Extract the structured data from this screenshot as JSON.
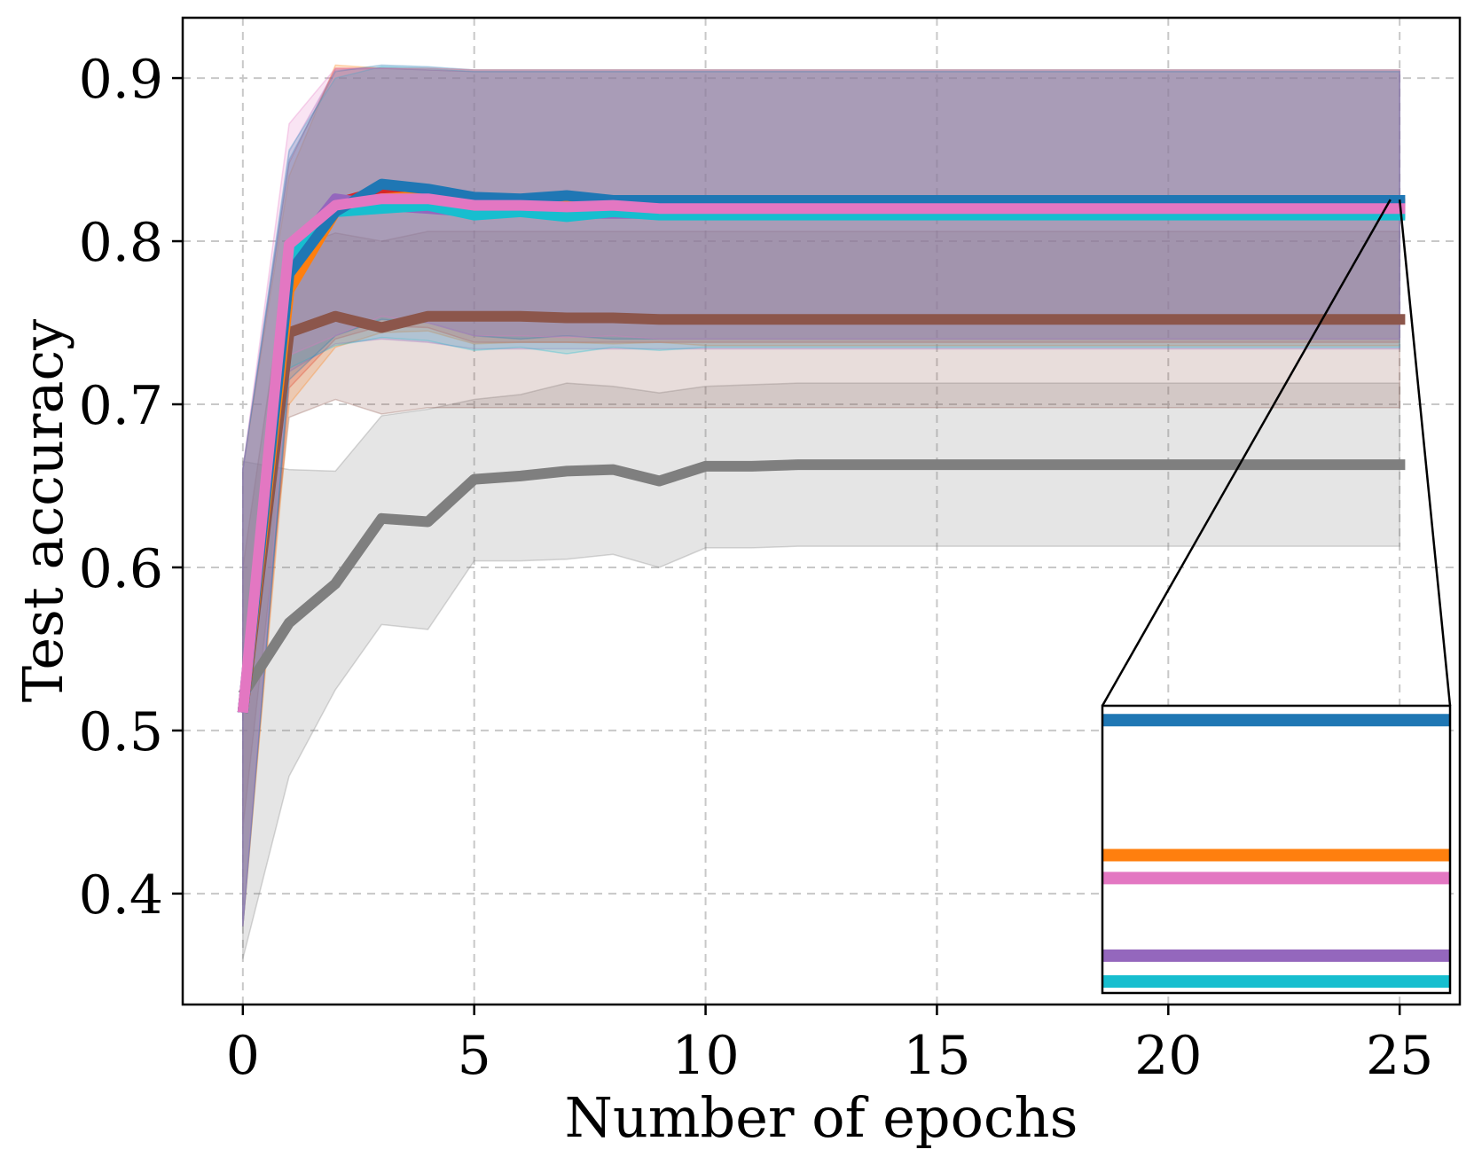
{
  "chart_data": {
    "type": "line",
    "title": "",
    "xlabel": "Number of epochs",
    "ylabel": "Test accuracy",
    "xlim": [
      -1.3,
      26.3
    ],
    "ylim": [
      0.332,
      0.937
    ],
    "xticks": [
      0,
      5,
      10,
      15,
      20,
      25
    ],
    "xtick_labels": [
      "0",
      "5",
      "10",
      "15",
      "20",
      "25"
    ],
    "yticks": [
      0.4,
      0.5,
      0.6,
      0.7,
      0.8,
      0.9
    ],
    "ytick_labels": [
      "0.4",
      "0.5",
      "0.6",
      "0.7",
      "0.8",
      "0.9"
    ],
    "grid": true,
    "x": [
      0,
      1,
      2,
      3,
      4,
      5,
      6,
      7,
      8,
      9,
      10,
      11,
      12,
      13,
      14,
      15,
      16,
      17,
      18,
      19,
      20,
      21,
      22,
      23,
      24,
      25
    ],
    "series": [
      {
        "color": "#7f7f7f",
        "mean": [
          0.522,
          0.566,
          0.59,
          0.63,
          0.628,
          0.654,
          0.656,
          0.659,
          0.66,
          0.653,
          0.662,
          0.662,
          0.663,
          0.663,
          0.663,
          0.663,
          0.663,
          0.663,
          0.663,
          0.663,
          0.663,
          0.663,
          0.663,
          0.663,
          0.663,
          0.663
        ],
        "lower": [
          0.36,
          0.472,
          0.525,
          0.565,
          0.562,
          0.604,
          0.604,
          0.605,
          0.608,
          0.6,
          0.612,
          0.612,
          0.613,
          0.613,
          0.613,
          0.613,
          0.613,
          0.613,
          0.613,
          0.613,
          0.613,
          0.613,
          0.613,
          0.613,
          0.613,
          0.613
        ],
        "upper": [
          0.665,
          0.66,
          0.659,
          0.693,
          0.697,
          0.703,
          0.706,
          0.713,
          0.711,
          0.707,
          0.711,
          0.712,
          0.713,
          0.713,
          0.713,
          0.713,
          0.713,
          0.713,
          0.713,
          0.713,
          0.713,
          0.713,
          0.713,
          0.713,
          0.713,
          0.713
        ]
      },
      {
        "color": "#8c564b",
        "mean": [
          0.511,
          0.744,
          0.754,
          0.747,
          0.754,
          0.754,
          0.754,
          0.753,
          0.753,
          0.752,
          0.752,
          0.752,
          0.752,
          0.752,
          0.752,
          0.752,
          0.752,
          0.752,
          0.752,
          0.752,
          0.752,
          0.752,
          0.752,
          0.752,
          0.752,
          0.752
        ],
        "lower": [
          0.44,
          0.692,
          0.703,
          0.694,
          0.698,
          0.698,
          0.698,
          0.698,
          0.698,
          0.698,
          0.698,
          0.698,
          0.698,
          0.698,
          0.698,
          0.698,
          0.698,
          0.698,
          0.698,
          0.698,
          0.698,
          0.698,
          0.698,
          0.698,
          0.698,
          0.698
        ],
        "upper": [
          0.6,
          0.795,
          0.805,
          0.8,
          0.806,
          0.806,
          0.806,
          0.806,
          0.806,
          0.806,
          0.806,
          0.806,
          0.806,
          0.806,
          0.806,
          0.806,
          0.806,
          0.806,
          0.806,
          0.806,
          0.806,
          0.806,
          0.806,
          0.806,
          0.806,
          0.806
        ]
      },
      {
        "color": "#d62728",
        "mean": [
          0.511,
          0.778,
          0.823,
          0.831,
          0.83,
          0.824,
          0.824,
          0.824,
          0.823,
          0.823,
          0.823,
          0.823,
          0.823,
          0.823,
          0.823,
          0.823,
          0.823,
          0.823,
          0.823,
          0.823,
          0.823,
          0.823,
          0.823,
          0.823,
          0.823,
          0.823
        ],
        "lower": [
          0.38,
          0.71,
          0.74,
          0.748,
          0.747,
          0.738,
          0.738,
          0.738,
          0.738,
          0.738,
          0.738,
          0.738,
          0.738,
          0.738,
          0.738,
          0.738,
          0.738,
          0.738,
          0.738,
          0.738,
          0.738,
          0.738,
          0.738,
          0.738,
          0.738,
          0.738
        ],
        "upper": [
          0.66,
          0.848,
          0.906,
          0.906,
          0.905,
          0.904,
          0.904,
          0.904,
          0.904,
          0.904,
          0.904,
          0.904,
          0.904,
          0.904,
          0.904,
          0.904,
          0.904,
          0.904,
          0.904,
          0.904,
          0.904,
          0.904,
          0.904,
          0.904,
          0.904,
          0.904
        ]
      },
      {
        "color": "#ff7f0e",
        "mean": [
          0.511,
          0.77,
          0.818,
          0.826,
          0.828,
          0.821,
          0.824,
          0.823,
          0.822,
          0.825,
          0.82,
          0.82,
          0.82,
          0.82,
          0.82,
          0.82,
          0.82,
          0.82,
          0.82,
          0.82,
          0.82,
          0.82,
          0.82,
          0.82,
          0.82,
          0.82
        ],
        "lower": [
          0.38,
          0.7,
          0.735,
          0.744,
          0.745,
          0.737,
          0.738,
          0.738,
          0.737,
          0.738,
          0.736,
          0.736,
          0.736,
          0.736,
          0.736,
          0.736,
          0.736,
          0.736,
          0.736,
          0.736,
          0.736,
          0.736,
          0.736,
          0.736,
          0.736,
          0.736
        ],
        "upper": [
          0.66,
          0.84,
          0.908,
          0.906,
          0.906,
          0.905,
          0.905,
          0.905,
          0.905,
          0.905,
          0.905,
          0.905,
          0.905,
          0.905,
          0.905,
          0.905,
          0.905,
          0.905,
          0.905,
          0.905,
          0.905,
          0.905,
          0.905,
          0.905,
          0.905,
          0.905
        ]
      },
      {
        "color": "#9467bd",
        "mean": [
          0.511,
          0.79,
          0.826,
          0.822,
          0.82,
          0.818,
          0.818,
          0.817,
          0.817,
          0.817,
          0.817,
          0.817,
          0.817,
          0.817,
          0.817,
          0.817,
          0.817,
          0.817,
          0.817,
          0.817,
          0.817,
          0.817,
          0.817,
          0.817,
          0.817,
          0.817
        ],
        "lower": [
          0.38,
          0.72,
          0.737,
          0.74,
          0.738,
          0.734,
          0.734,
          0.734,
          0.734,
          0.734,
          0.734,
          0.734,
          0.734,
          0.734,
          0.734,
          0.734,
          0.734,
          0.734,
          0.734,
          0.734,
          0.734,
          0.734,
          0.734,
          0.734,
          0.734,
          0.734
        ],
        "upper": [
          0.66,
          0.855,
          0.905,
          0.906,
          0.905,
          0.904,
          0.904,
          0.904,
          0.904,
          0.904,
          0.904,
          0.904,
          0.904,
          0.904,
          0.904,
          0.904,
          0.904,
          0.904,
          0.904,
          0.904,
          0.904,
          0.904,
          0.904,
          0.904,
          0.904,
          0.904
        ]
      },
      {
        "color": "#17becf",
        "mean": [
          0.511,
          0.79,
          0.818,
          0.82,
          0.822,
          0.816,
          0.818,
          0.815,
          0.818,
          0.816,
          0.816,
          0.816,
          0.816,
          0.816,
          0.816,
          0.816,
          0.816,
          0.816,
          0.816,
          0.816,
          0.816,
          0.816,
          0.816,
          0.816,
          0.816,
          0.816
        ],
        "lower": [
          0.38,
          0.722,
          0.736,
          0.741,
          0.739,
          0.733,
          0.735,
          0.731,
          0.735,
          0.733,
          0.735,
          0.735,
          0.735,
          0.735,
          0.735,
          0.735,
          0.735,
          0.735,
          0.735,
          0.735,
          0.735,
          0.735,
          0.735,
          0.735,
          0.735,
          0.735
        ],
        "upper": [
          0.66,
          0.856,
          0.9,
          0.907,
          0.906,
          0.904,
          0.904,
          0.904,
          0.904,
          0.904,
          0.904,
          0.904,
          0.904,
          0.904,
          0.904,
          0.904,
          0.904,
          0.904,
          0.904,
          0.904,
          0.904,
          0.904,
          0.904,
          0.904,
          0.904,
          0.904
        ]
      },
      {
        "color": "#1f77b4",
        "mean": [
          0.511,
          0.78,
          0.818,
          0.835,
          0.832,
          0.827,
          0.826,
          0.828,
          0.825,
          0.825,
          0.825,
          0.825,
          0.825,
          0.825,
          0.825,
          0.825,
          0.825,
          0.825,
          0.825,
          0.825,
          0.825,
          0.825,
          0.825,
          0.825,
          0.825,
          0.825
        ],
        "lower": [
          0.38,
          0.715,
          0.742,
          0.752,
          0.75,
          0.742,
          0.74,
          0.742,
          0.74,
          0.74,
          0.74,
          0.74,
          0.74,
          0.74,
          0.74,
          0.74,
          0.74,
          0.74,
          0.74,
          0.74,
          0.74,
          0.74,
          0.74,
          0.74,
          0.74,
          0.74
        ],
        "upper": [
          0.66,
          0.85,
          0.904,
          0.908,
          0.907,
          0.905,
          0.905,
          0.905,
          0.905,
          0.905,
          0.905,
          0.905,
          0.905,
          0.905,
          0.905,
          0.905,
          0.905,
          0.905,
          0.905,
          0.905,
          0.905,
          0.905,
          0.905,
          0.905,
          0.905,
          0.905
        ]
      },
      {
        "color": "#e377c2",
        "mean": [
          0.511,
          0.798,
          0.822,
          0.826,
          0.826,
          0.822,
          0.822,
          0.821,
          0.822,
          0.82,
          0.82,
          0.82,
          0.82,
          0.82,
          0.82,
          0.82,
          0.82,
          0.82,
          0.82,
          0.82,
          0.82,
          0.82,
          0.82,
          0.82,
          0.82,
          0.82
        ],
        "lower": [
          0.38,
          0.73,
          0.742,
          0.754,
          0.75,
          0.742,
          0.742,
          0.741,
          0.742,
          0.74,
          0.74,
          0.74,
          0.74,
          0.74,
          0.74,
          0.74,
          0.74,
          0.74,
          0.74,
          0.74,
          0.74,
          0.74,
          0.74,
          0.74,
          0.74,
          0.74
        ],
        "upper": [
          0.66,
          0.872,
          0.906,
          0.906,
          0.906,
          0.905,
          0.905,
          0.905,
          0.905,
          0.905,
          0.905,
          0.905,
          0.905,
          0.905,
          0.905,
          0.905,
          0.905,
          0.905,
          0.905,
          0.905,
          0.905,
          0.905,
          0.905,
          0.905,
          0.905,
          0.905
        ]
      }
    ],
    "inset": {
      "source_region": {
        "x": [
          24.8,
          25.0
        ],
        "y": [
          0.8155,
          0.8255
        ]
      },
      "lines": [
        {
          "color": "#1f77b4",
          "value": 0.825
        },
        {
          "color": "#ff7f0e",
          "value": 0.8203
        },
        {
          "color": "#e377c2",
          "value": 0.8195
        },
        {
          "color": "#9467bd",
          "value": 0.8168
        },
        {
          "color": "#17becf",
          "value": 0.8159
        }
      ],
      "placement": "bottom-right"
    }
  }
}
